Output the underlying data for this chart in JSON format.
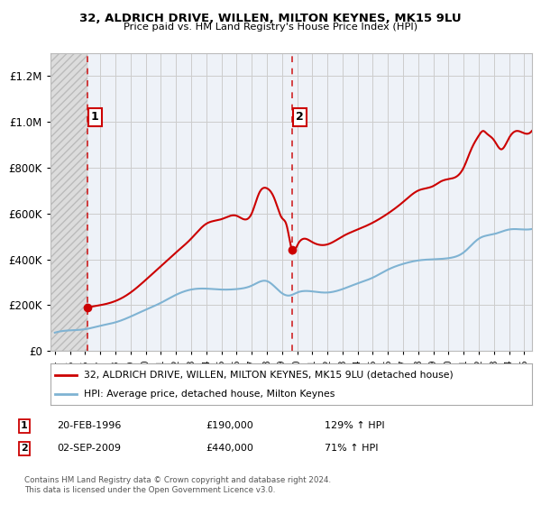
{
  "title1": "32, ALDRICH DRIVE, WILLEN, MILTON KEYNES, MK15 9LU",
  "title2": "Price paid vs. HM Land Registry's House Price Index (HPI)",
  "legend_line1": "32, ALDRICH DRIVE, WILLEN, MILTON KEYNES, MK15 9LU (detached house)",
  "legend_line2": "HPI: Average price, detached house, Milton Keynes",
  "sale1_label": "1",
  "sale1_date": "20-FEB-1996",
  "sale1_price": "£190,000",
  "sale1_hpi": "129% ↑ HPI",
  "sale1_x": 1996.13,
  "sale1_y": 190000,
  "sale2_label": "2",
  "sale2_date": "02-SEP-2009",
  "sale2_price": "£440,000",
  "sale2_hpi": "71% ↑ HPI",
  "sale2_x": 2009.67,
  "sale2_y": 440000,
  "copyright": "Contains HM Land Registry data © Crown copyright and database right 2024.\nThis data is licensed under the Open Government Licence v3.0.",
  "ylim_max": 1300000,
  "xlim_start": 1993.7,
  "xlim_end": 2025.5,
  "house_color": "#cc0000",
  "hpi_color": "#7fb3d3",
  "background_plot": "#eef2f8",
  "background_hatch": "#dcdcdc",
  "grid_color": "#cccccc",
  "dashed_line_color": "#cc0000",
  "yticks": [
    0,
    200000,
    400000,
    600000,
    800000,
    1000000,
    1200000
  ],
  "xticks_start": 1994,
  "xticks_end": 2025
}
